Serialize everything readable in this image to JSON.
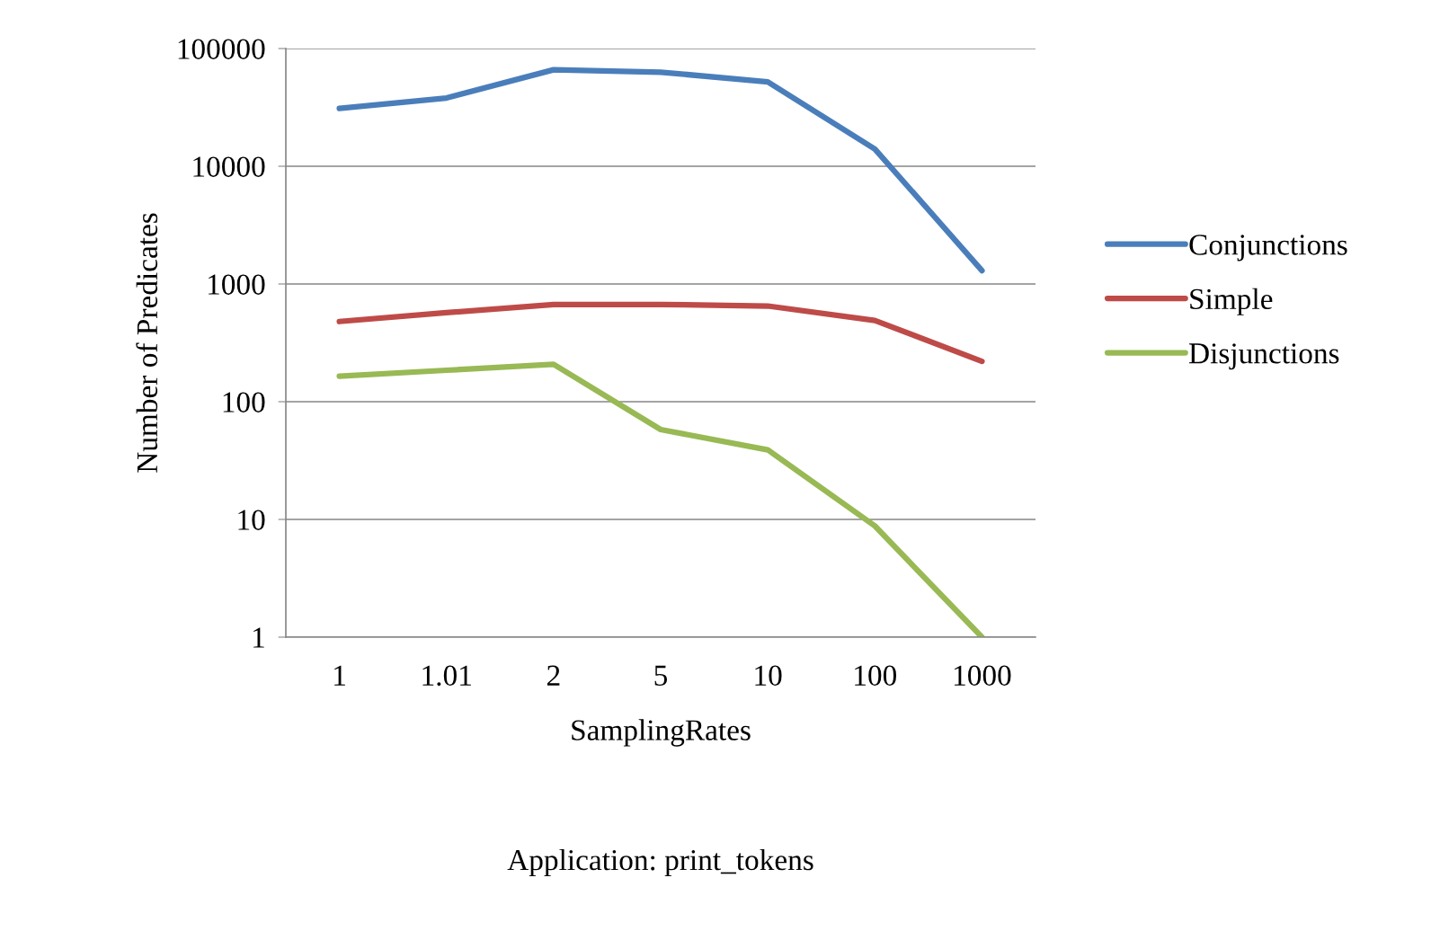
{
  "chart_data": {
    "type": "line",
    "xlabel": "SamplingRates",
    "ylabel": "Number of Predicates",
    "categories": [
      "1",
      "1.01",
      "2",
      "5",
      "10",
      "100",
      "1000"
    ],
    "series": [
      {
        "name": "Conjunctions",
        "color": "#4a7ebb",
        "values": [
          31000,
          38000,
          66000,
          63000,
          52000,
          14000,
          1300
        ]
      },
      {
        "name": "Simple",
        "color": "#be4b48",
        "values": [
          480,
          570,
          670,
          670,
          650,
          490,
          220
        ]
      },
      {
        "name": "Disjunctions",
        "color": "#98b954",
        "values": [
          165,
          185,
          208,
          58,
          39,
          8.8,
          1
        ]
      }
    ],
    "log": "y",
    "ylim": [
      1,
      100000
    ],
    "yticks": [
      1,
      10,
      100,
      1000,
      10000,
      100000
    ],
    "grid": "y",
    "legend": "right",
    "marker": "none",
    "line_style": "solid",
    "annotations": [
      "Application: print_tokens"
    ]
  }
}
